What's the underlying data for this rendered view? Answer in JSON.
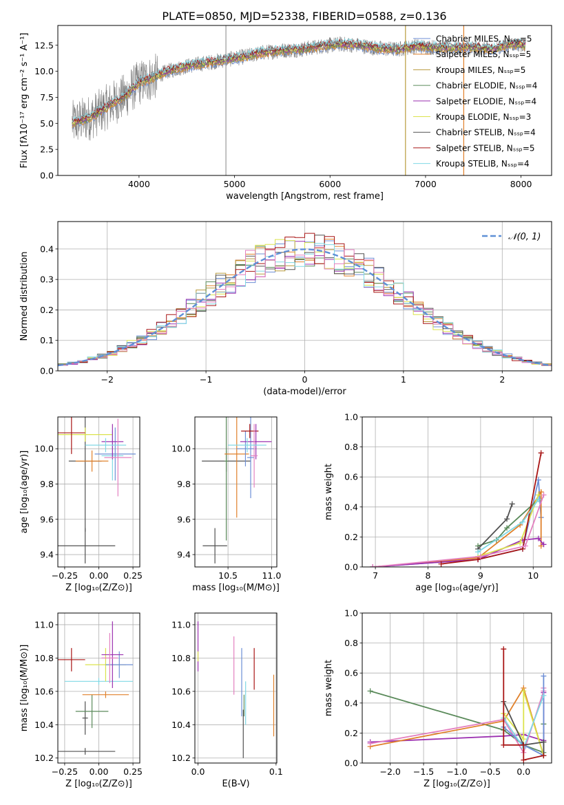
{
  "figure_title": "PLATE=0850, MJD=52338, FIBERID=0588, z=0.136",
  "chart_data": [
    {
      "id": "spectrum",
      "type": "line",
      "xlabel": "wavelength [Angstrom, rest frame]",
      "ylabel": "Flux [fλ10⁻¹⁷ erg cm⁻² s⁻¹ A⁻¹]",
      "xlim": [
        3150,
        8320
      ],
      "ylim": [
        0,
        14.4
      ],
      "xticks": [
        4000,
        5000,
        6000,
        7000,
        8000
      ],
      "yticks": [
        0.0,
        2.5,
        5.0,
        7.5,
        10.0,
        12.5
      ],
      "grid": false,
      "legend_position": "right",
      "observed": {
        "x": [
          3300,
          3500,
          3700,
          3850,
          4000,
          4150,
          4300,
          4500,
          4700,
          4900,
          5100,
          5300,
          5500,
          5700,
          5900,
          6100,
          6300,
          6500,
          6700,
          6900,
          7100,
          7300,
          7500,
          7700,
          7900,
          8050
        ],
        "y": [
          5.0,
          5.6,
          6.8,
          7.6,
          8.9,
          9.4,
          10.0,
          10.5,
          10.8,
          11.1,
          11.4,
          11.8,
          12.0,
          12.1,
          12.4,
          12.6,
          12.5,
          12.2,
          12.1,
          12.4,
          12.3,
          12.2,
          12.3,
          12.1,
          12.6,
          12.5
        ],
        "noise": 1.4
      },
      "series": [
        {
          "name": "Chabrier MILES, Nₛₛₚ=5",
          "color": "#6c8ed6"
        },
        {
          "name": "Salpeter MILES, Nₛₛₚ=5",
          "color": "#e0802a"
        },
        {
          "name": "Kroupa MILES, Nₛₛₚ=5",
          "color": "#b89a3c"
        },
        {
          "name": "Chabrier ELODIE, Nₛₛₚ=4",
          "color": "#5a8a5a"
        },
        {
          "name": "Salpeter ELODIE, Nₛₛₚ=4",
          "color": "#9b30b0"
        },
        {
          "name": "Kroupa ELODIE, Nₛₛₚ=3",
          "color": "#dbe34c"
        },
        {
          "name": "Chabrier STELIB, Nₛₛₚ=4",
          "color": "#505050"
        },
        {
          "name": "Salpeter STELIB, Nₛₛₚ=5",
          "color": "#a81414"
        },
        {
          "name": "Kroupa STELIB, Nₛₛₚ=4",
          "color": "#7fd8e4"
        }
      ],
      "vertical_lines": [
        {
          "x": 4910,
          "ymax": 14.4,
          "color": "#999999"
        },
        {
          "x": 6790,
          "ymax": 14.4,
          "color": "#b89a3c"
        },
        {
          "x": 7400,
          "ymax": 14.4,
          "color": "#e0802a"
        }
      ]
    },
    {
      "id": "residuals",
      "type": "area",
      "xlabel": "(data-model)/error",
      "ylabel": "Normed distribution",
      "xlim": [
        -2.5,
        2.5
      ],
      "ylim": [
        0,
        0.49
      ],
      "xticks": [
        -2,
        -1,
        0,
        1,
        2
      ],
      "yticks": [
        0.0,
        0.1,
        0.2,
        0.3,
        0.4
      ],
      "grid": true,
      "legend_position": "top-right",
      "legend_label": "𝒩(0, 1)",
      "bin_width": 0.1,
      "reference_curve": {
        "type": "normal",
        "mean": 0,
        "sd": 1,
        "color": "#5f8fd6"
      },
      "hist_colors": [
        "#6c8ed6",
        "#e0802a",
        "#b89a3c",
        "#5a8a5a",
        "#9b30b0",
        "#dbe34c",
        "#505050",
        "#a81414",
        "#7fd8e4",
        "#e37fbf"
      ]
    },
    {
      "id": "age_vs_Z",
      "type": "scatter",
      "xlabel": "Z [log₁₀(Z/Z⊙)]",
      "ylabel": "age  [log₁₀(age/yr)]",
      "xlim": [
        -0.3,
        0.3
      ],
      "ylim": [
        9.33,
        10.18
      ],
      "xticks": [
        -0.25,
        0.0,
        0.25
      ],
      "yticks": [
        9.4,
        9.6,
        9.8,
        10.0
      ],
      "grid": true,
      "points": [
        {
          "x": -0.1,
          "y": 9.45,
          "xerr": 0.22,
          "yerr": 0.1,
          "color": "#505050"
        },
        {
          "x": -0.1,
          "y": 9.93,
          "xerr": 0.12,
          "yerr": 0.4,
          "color": "#505050"
        },
        {
          "x": -0.05,
          "y": 9.93,
          "xerr": 0.12,
          "yerr": 0.06,
          "color": "#e0802a"
        },
        {
          "x": -0.1,
          "y": 10.08,
          "xerr": 0.2,
          "yerr": 0.04,
          "color": "#dbe34c"
        },
        {
          "x": -0.2,
          "y": 10.09,
          "xerr": 0.1,
          "yerr": 0.12,
          "color": "#a81414"
        },
        {
          "x": 0.1,
          "y": 9.96,
          "xerr": 0.08,
          "yerr": 0.14,
          "color": "#7fd8e4"
        },
        {
          "x": 0.12,
          "y": 9.97,
          "xerr": 0.15,
          "yerr": 0.15,
          "color": "#6c8ed6"
        },
        {
          "x": 0.1,
          "y": 10.04,
          "xerr": 0.08,
          "yerr": 0.1,
          "color": "#9b30b0"
        },
        {
          "x": 0.14,
          "y": 9.95,
          "xerr": 0.1,
          "yerr": 0.22,
          "color": "#e37fbf"
        },
        {
          "x": 0.05,
          "y": 10.02,
          "xerr": 0.15,
          "yerr": 0.04,
          "color": "#7fd8e4"
        }
      ]
    },
    {
      "id": "age_vs_mass",
      "type": "scatter",
      "xlabel": "mass [log₁₀(M/M⊙)]",
      "ylabel": "",
      "xlim": [
        10.12,
        11.06
      ],
      "ylim": [
        9.33,
        10.18
      ],
      "xticks": [
        10.5,
        11.0
      ],
      "yticks": [
        9.4,
        9.6,
        9.8,
        10.0
      ],
      "grid": true,
      "points": [
        {
          "x": 10.35,
          "y": 9.45,
          "xerr": 0.14,
          "yerr": 0.1,
          "color": "#505050"
        },
        {
          "x": 10.48,
          "y": 9.93,
          "xerr": 0.28,
          "yerr": 0.06,
          "color": "#505050"
        },
        {
          "x": 10.48,
          "y": 9.93,
          "xerr": 0.02,
          "yerr": 0.45,
          "color": "#5a8a5a"
        },
        {
          "x": 10.6,
          "y": 9.97,
          "xerr": 0.14,
          "yerr": 0.36,
          "color": "#e0802a"
        },
        {
          "x": 10.7,
          "y": 10.0,
          "xerr": 0.1,
          "yerr": 0.1,
          "color": "#6c8ed6"
        },
        {
          "x": 10.76,
          "y": 9.95,
          "xerr": 0.04,
          "yerr": 0.23,
          "color": "#6c8ed6"
        },
        {
          "x": 10.75,
          "y": 10.1,
          "xerr": 0.1,
          "yerr": 0.04,
          "color": "#a81414"
        },
        {
          "x": 10.82,
          "y": 10.04,
          "xerr": 0.18,
          "yerr": 0.1,
          "color": "#9b30b0"
        },
        {
          "x": 10.8,
          "y": 9.96,
          "xerr": 0.04,
          "yerr": 0.18,
          "color": "#e37fbf"
        },
        {
          "x": 10.72,
          "y": 10.02,
          "xerr": 0.22,
          "yerr": 0.04,
          "color": "#7fd8e4"
        }
      ]
    },
    {
      "id": "weight_vs_age",
      "type": "line",
      "xlabel": "age  [log₁₀(age/yr)]",
      "ylabel": "mass weight",
      "xlim": [
        6.75,
        10.35
      ],
      "ylim": [
        0,
        1.0
      ],
      "xticks": [
        7,
        8,
        9,
        10
      ],
      "yticks": [
        0.0,
        0.2,
        0.4,
        0.6,
        0.8,
        1.0
      ],
      "grid": true,
      "series": [
        {
          "color": "#6c8ed6",
          "x": [
            6.95,
            8.95,
            9.8,
            10.1,
            10.15
          ],
          "y": [
            0.0,
            0.05,
            0.12,
            0.58,
            0.33
          ]
        },
        {
          "color": "#e0802a",
          "x": [
            6.95,
            8.95,
            9.75,
            10.15,
            10.15
          ],
          "y": [
            0.0,
            0.06,
            0.28,
            0.5,
            0.14
          ]
        },
        {
          "color": "#5a8a5a",
          "x": [
            8.95,
            9.3,
            9.5,
            10.1
          ],
          "y": [
            0.14,
            0.18,
            0.26,
            0.45
          ]
        },
        {
          "color": "#9b30b0",
          "x": [
            6.95,
            8.95,
            9.8,
            10.1,
            10.2
          ],
          "y": [
            0.0,
            0.05,
            0.18,
            0.19,
            0.15
          ]
        },
        {
          "color": "#dbe34c",
          "x": [
            8.95,
            9.75,
            10.1
          ],
          "y": [
            0.07,
            0.16,
            0.48
          ]
        },
        {
          "color": "#505050",
          "x": [
            8.95,
            9.5,
            9.6
          ],
          "y": [
            0.12,
            0.32,
            0.42
          ]
        },
        {
          "color": "#a81414",
          "x": [
            8.25,
            8.95,
            9.8,
            10.15
          ],
          "y": [
            0.02,
            0.05,
            0.12,
            0.76
          ]
        },
        {
          "color": "#7fd8e4",
          "x": [
            8.95,
            9.8,
            10.1
          ],
          "y": [
            0.1,
            0.3,
            0.45
          ]
        },
        {
          "color": "#e37fbf",
          "x": [
            6.95,
            9.0,
            9.85,
            10.2
          ],
          "y": [
            0.0,
            0.07,
            0.14,
            0.48
          ]
        }
      ]
    },
    {
      "id": "mass_vs_Z",
      "type": "scatter",
      "xlabel": "Z [log₁₀(Z/Z⊙)]",
      "ylabel": "mass [log₁₀(M/M⊙)]",
      "xlim": [
        -0.3,
        0.3
      ],
      "ylim": [
        10.17,
        11.07
      ],
      "xticks": [
        -0.25,
        0.0,
        0.25
      ],
      "yticks": [
        10.2,
        10.4,
        10.6,
        10.8,
        11.0
      ],
      "grid": true,
      "points": [
        {
          "x": -0.1,
          "y": 10.24,
          "xerr": 0.22,
          "yerr": 0.02,
          "color": "#505050"
        },
        {
          "x": -0.1,
          "y": 10.44,
          "xerr": 0.02,
          "yerr": 0.1,
          "color": "#505050"
        },
        {
          "x": -0.05,
          "y": 10.48,
          "xerr": 0.12,
          "yerr": 0.1,
          "color": "#5a8a5a"
        },
        {
          "x": 0.05,
          "y": 10.58,
          "xerr": 0.17,
          "yerr": 0.02,
          "color": "#e0802a"
        },
        {
          "x": 0.0,
          "y": 10.66,
          "xerr": 0.25,
          "yerr": 0.02,
          "color": "#7fd8e4"
        },
        {
          "x": -0.2,
          "y": 10.79,
          "xerr": 0.1,
          "yerr": 0.07,
          "color": "#a81414"
        },
        {
          "x": 0.05,
          "y": 10.76,
          "xerr": 0.15,
          "yerr": 0.1,
          "color": "#dbe34c"
        },
        {
          "x": 0.15,
          "y": 10.76,
          "xerr": 0.1,
          "yerr": 0.08,
          "color": "#6c8ed6"
        },
        {
          "x": 0.1,
          "y": 10.82,
          "xerr": 0.08,
          "yerr": 0.2,
          "color": "#9b30b0"
        },
        {
          "x": 0.08,
          "y": 10.8,
          "xerr": 0.06,
          "yerr": 0.15,
          "color": "#e37fbf"
        }
      ]
    },
    {
      "id": "mass_vs_ebv",
      "type": "scatter",
      "xlabel": "E(B-V)",
      "ylabel": "",
      "xlim": [
        -0.004,
        0.101
      ],
      "ylim": [
        10.17,
        11.07
      ],
      "xticks": [
        0.0,
        0.1
      ],
      "yticks": [
        10.2,
        10.4,
        10.6,
        10.8,
        11.0
      ],
      "grid": true,
      "segments": [
        {
          "x": 0.0,
          "y1": 10.72,
          "y2": 11.02,
          "color": "#9b30b0"
        },
        {
          "x": 0.0,
          "y1": 10.78,
          "y2": 10.84,
          "color": "#dbe34c"
        },
        {
          "x": 0.046,
          "y1": 10.58,
          "y2": 10.93,
          "color": "#e37fbf"
        },
        {
          "x": 0.056,
          "y1": 10.45,
          "y2": 10.86,
          "color": "#6c8ed6"
        },
        {
          "x": 0.059,
          "y1": 10.45,
          "y2": 10.58,
          "color": "#5a8a5a"
        },
        {
          "x": 0.058,
          "y1": 10.2,
          "y2": 10.49,
          "color": "#505050"
        },
        {
          "x": 0.061,
          "y1": 10.4,
          "y2": 10.66,
          "color": "#7fd8e4"
        },
        {
          "x": 0.072,
          "y1": 10.61,
          "y2": 10.86,
          "color": "#a81414"
        },
        {
          "x": 0.097,
          "y1": 10.33,
          "y2": 10.7,
          "color": "#e0802a"
        }
      ]
    },
    {
      "id": "weight_vs_Z",
      "type": "line",
      "xlabel": "Z [log₁₀(Z/Z⊙)]",
      "ylabel": "mass weight",
      "xlim": [
        -2.42,
        0.42
      ],
      "ylim": [
        0,
        1.0
      ],
      "xticks": [
        -2.0,
        -1.5,
        -1.0,
        -0.5,
        0.0
      ],
      "yticks": [
        0.0,
        0.2,
        0.4,
        0.6,
        0.8,
        1.0
      ],
      "grid": true,
      "series": [
        {
          "color": "#5a8a5a",
          "x": [
            -2.3,
            -0.3,
            0.0,
            0.3,
            0.3
          ],
          "y": [
            0.48,
            0.22,
            0.12,
            0.07,
            0.26
          ]
        },
        {
          "color": "#9b30b0",
          "x": [
            -2.3,
            -0.3,
            0.0,
            0.3,
            0.3
          ],
          "y": [
            0.14,
            0.18,
            0.19,
            0.15,
            0.47
          ]
        },
        {
          "color": "#e0802a",
          "x": [
            -2.3,
            -0.3,
            0.0,
            0.3,
            0.3
          ],
          "y": [
            0.11,
            0.28,
            0.5,
            0.05,
            0.14
          ]
        },
        {
          "color": "#e37fbf",
          "x": [
            -2.3,
            -0.3,
            0.0,
            0.3,
            0.3
          ],
          "y": [
            0.13,
            0.29,
            0.07,
            0.48,
            0.5
          ]
        },
        {
          "color": "#6c8ed6",
          "x": [
            -0.3,
            0.0,
            0.3,
            0.3
          ],
          "y": [
            0.24,
            0.12,
            0.05,
            0.58
          ]
        },
        {
          "color": "#dbe34c",
          "x": [
            -0.3,
            0.0,
            0.0,
            0.3
          ],
          "y": [
            0.33,
            0.16,
            0.48,
            0.05
          ]
        },
        {
          "color": "#7fd8e4",
          "x": [
            -0.3,
            0.0,
            0.3
          ],
          "y": [
            0.3,
            0.1,
            0.45
          ]
        },
        {
          "color": "#505050",
          "x": [
            -0.3,
            0.0,
            0.3,
            0.3
          ],
          "y": [
            0.41,
            0.12,
            0.14,
            0.05
          ]
        },
        {
          "color": "#a81414",
          "x": [
            -0.3,
            -0.3,
            0.0,
            0.0,
            0.3
          ],
          "y": [
            0.76,
            0.12,
            0.12,
            0.02,
            0.05
          ]
        }
      ]
    }
  ]
}
